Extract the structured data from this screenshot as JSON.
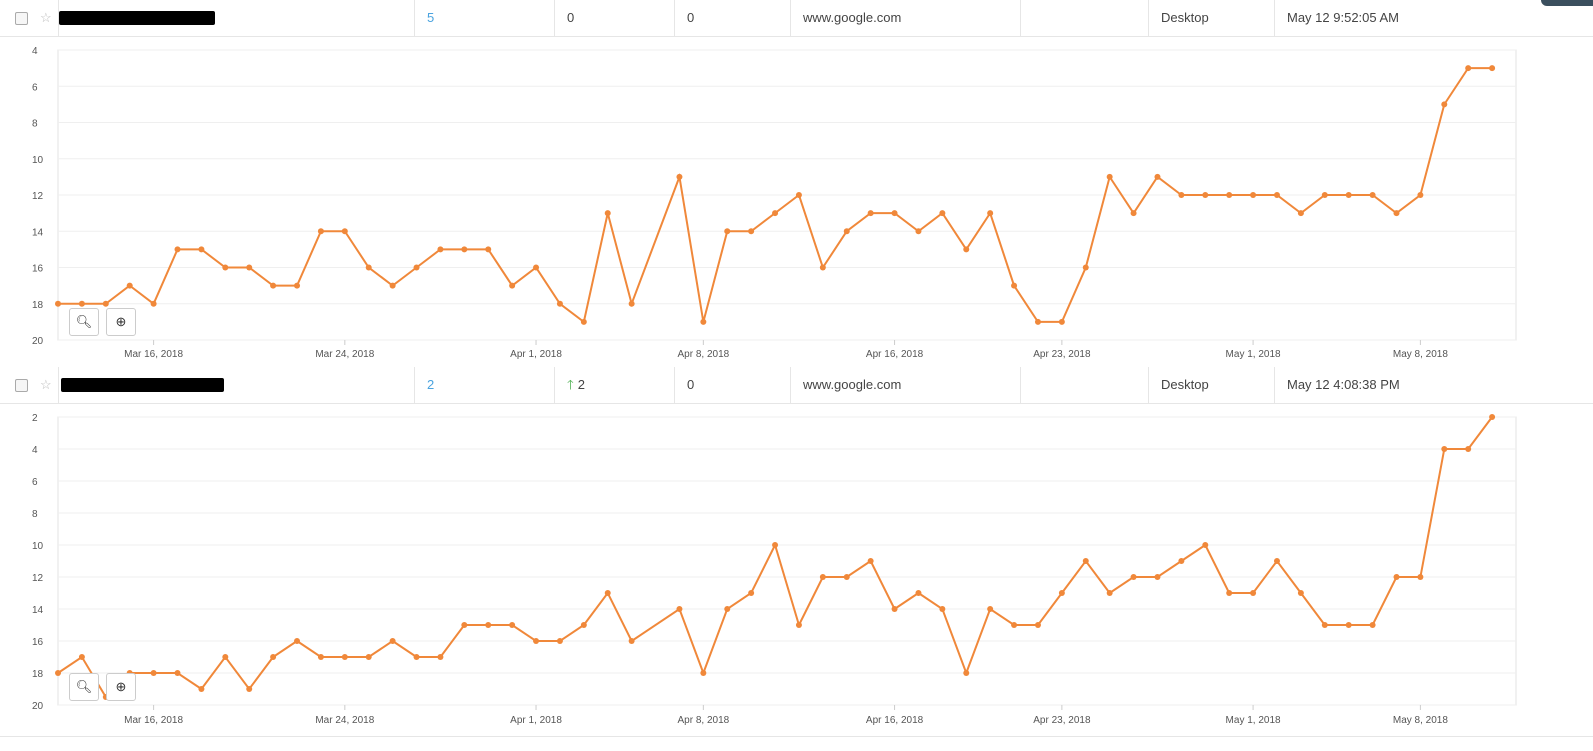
{
  "columns_note": "",
  "rows": [
    {
      "position": "5",
      "change": "0",
      "change_dir": "",
      "best": "0",
      "search_engine": "www.google.com",
      "url": "",
      "device": "Desktop",
      "updated": "May 12 9:52:05 AM"
    },
    {
      "position": "2",
      "change": "2",
      "change_dir": "up",
      "best": "0",
      "search_engine": "www.google.com",
      "url": "",
      "device": "Desktop",
      "updated": "May 12 4:08:38 PM"
    }
  ],
  "icons": {
    "checkbox": "checkbox-icon",
    "star": "star-icon",
    "zoom_out": "zoom-out-icon",
    "zoom_in": "zoom-in-icon",
    "up_arrow": "arrow-up-icon"
  },
  "colors": {
    "series": "#f0883a",
    "position_link": "#4aa3df",
    "up": "#4caf50"
  },
  "chart_data": [
    {
      "type": "line",
      "title": "",
      "xlabel": "",
      "ylabel": "",
      "y_reversed": true,
      "ylim": [
        4,
        20
      ],
      "yticks": [
        4,
        6,
        8,
        10,
        12,
        14,
        16,
        18,
        20
      ],
      "x_range": [
        "2018-03-12",
        "2018-05-12"
      ],
      "xtick_labels": [
        "Mar 16, 2018",
        "Mar 24, 2018",
        "Apr 1, 2018",
        "Apr 8, 2018",
        "Apr 16, 2018",
        "Apr 23, 2018",
        "May 1, 2018",
        "May 8, 2018"
      ],
      "grid": true,
      "series": [
        {
          "name": "",
          "points": [
            [
              "2018-03-12",
              18
            ],
            [
              "2018-03-13",
              18
            ],
            [
              "2018-03-14",
              18
            ],
            [
              "2018-03-15",
              17
            ],
            [
              "2018-03-16",
              18
            ],
            [
              "2018-03-17",
              15
            ],
            [
              "2018-03-18",
              15
            ],
            [
              "2018-03-19",
              16
            ],
            [
              "2018-03-20",
              16
            ],
            [
              "2018-03-21",
              17
            ],
            [
              "2018-03-22",
              17
            ],
            [
              "2018-03-23",
              14
            ],
            [
              "2018-03-24",
              14
            ],
            [
              "2018-03-25",
              16
            ],
            [
              "2018-03-26",
              17
            ],
            [
              "2018-03-27",
              16
            ],
            [
              "2018-03-28",
              15
            ],
            [
              "2018-03-29",
              15
            ],
            [
              "2018-03-30",
              15
            ],
            [
              "2018-03-31",
              17
            ],
            [
              "2018-04-01",
              16
            ],
            [
              "2018-04-02",
              18
            ],
            [
              "2018-04-03",
              19
            ],
            [
              "2018-04-04",
              13
            ],
            [
              "2018-04-05",
              18
            ],
            [
              "2018-04-07",
              11
            ],
            [
              "2018-04-08",
              19
            ],
            [
              "2018-04-09",
              14
            ],
            [
              "2018-04-10",
              14
            ],
            [
              "2018-04-11",
              13
            ],
            [
              "2018-04-12",
              12
            ],
            [
              "2018-04-13",
              16
            ],
            [
              "2018-04-14",
              14
            ],
            [
              "2018-04-15",
              13
            ],
            [
              "2018-04-16",
              13
            ],
            [
              "2018-04-17",
              14
            ],
            [
              "2018-04-18",
              13
            ],
            [
              "2018-04-19",
              15
            ],
            [
              "2018-04-20",
              13
            ],
            [
              "2018-04-21",
              17
            ],
            [
              "2018-04-22",
              19
            ],
            [
              "2018-04-23",
              19
            ],
            [
              "2018-04-24",
              16
            ],
            [
              "2018-04-25",
              11
            ],
            [
              "2018-04-26",
              13
            ],
            [
              "2018-04-27",
              11
            ],
            [
              "2018-04-28",
              12
            ],
            [
              "2018-04-29",
              12
            ],
            [
              "2018-04-30",
              12
            ],
            [
              "2018-05-01",
              12
            ],
            [
              "2018-05-02",
              12
            ],
            [
              "2018-05-03",
              13
            ],
            [
              "2018-05-04",
              12
            ],
            [
              "2018-05-05",
              12
            ],
            [
              "2018-05-06",
              12
            ],
            [
              "2018-05-07",
              13
            ],
            [
              "2018-05-08",
              12
            ],
            [
              "2018-05-09",
              7
            ],
            [
              "2018-05-10",
              5
            ],
            [
              "2018-05-11",
              5
            ]
          ]
        }
      ]
    },
    {
      "type": "line",
      "title": "",
      "xlabel": "",
      "ylabel": "",
      "y_reversed": true,
      "ylim": [
        2,
        20
      ],
      "yticks": [
        2,
        4,
        6,
        8,
        10,
        12,
        14,
        16,
        18,
        20
      ],
      "x_range": [
        "2018-03-12",
        "2018-05-12"
      ],
      "xtick_labels": [
        "Mar 16, 2018",
        "Mar 24, 2018",
        "Apr 1, 2018",
        "Apr 8, 2018",
        "Apr 16, 2018",
        "Apr 23, 2018",
        "May 1, 2018",
        "May 8, 2018"
      ],
      "grid": true,
      "series": [
        {
          "name": "",
          "points": [
            [
              "2018-03-12",
              18
            ],
            [
              "2018-03-13",
              17
            ],
            [
              "2018-03-14",
              19.5
            ],
            [
              "2018-03-15",
              18
            ],
            [
              "2018-03-16",
              18
            ],
            [
              "2018-03-17",
              18
            ],
            [
              "2018-03-18",
              19
            ],
            [
              "2018-03-19",
              17
            ],
            [
              "2018-03-20",
              19
            ],
            [
              "2018-03-21",
              17
            ],
            [
              "2018-03-22",
              16
            ],
            [
              "2018-03-23",
              17
            ],
            [
              "2018-03-24",
              17
            ],
            [
              "2018-03-25",
              17
            ],
            [
              "2018-03-26",
              16
            ],
            [
              "2018-03-27",
              17
            ],
            [
              "2018-03-28",
              17
            ],
            [
              "2018-03-29",
              15
            ],
            [
              "2018-03-30",
              15
            ],
            [
              "2018-03-31",
              15
            ],
            [
              "2018-04-01",
              16
            ],
            [
              "2018-04-02",
              16
            ],
            [
              "2018-04-03",
              15
            ],
            [
              "2018-04-04",
              13
            ],
            [
              "2018-04-05",
              16
            ],
            [
              "2018-04-07",
              14
            ],
            [
              "2018-04-08",
              18
            ],
            [
              "2018-04-09",
              14
            ],
            [
              "2018-04-10",
              13
            ],
            [
              "2018-04-11",
              10
            ],
            [
              "2018-04-12",
              15
            ],
            [
              "2018-04-13",
              12
            ],
            [
              "2018-04-14",
              12
            ],
            [
              "2018-04-15",
              11
            ],
            [
              "2018-04-16",
              14
            ],
            [
              "2018-04-17",
              13
            ],
            [
              "2018-04-18",
              14
            ],
            [
              "2018-04-19",
              18
            ],
            [
              "2018-04-20",
              14
            ],
            [
              "2018-04-21",
              15
            ],
            [
              "2018-04-22",
              15
            ],
            [
              "2018-04-23",
              13
            ],
            [
              "2018-04-24",
              11
            ],
            [
              "2018-04-25",
              13
            ],
            [
              "2018-04-26",
              12
            ],
            [
              "2018-04-27",
              12
            ],
            [
              "2018-04-28",
              11
            ],
            [
              "2018-04-29",
              10
            ],
            [
              "2018-04-30",
              13
            ],
            [
              "2018-05-01",
              13
            ],
            [
              "2018-05-02",
              11
            ],
            [
              "2018-05-03",
              13
            ],
            [
              "2018-05-04",
              15
            ],
            [
              "2018-05-05",
              15
            ],
            [
              "2018-05-06",
              15
            ],
            [
              "2018-05-07",
              12
            ],
            [
              "2018-05-08",
              12
            ],
            [
              "2018-05-09",
              4
            ],
            [
              "2018-05-10",
              4
            ],
            [
              "2018-05-11",
              2
            ]
          ]
        }
      ]
    }
  ]
}
